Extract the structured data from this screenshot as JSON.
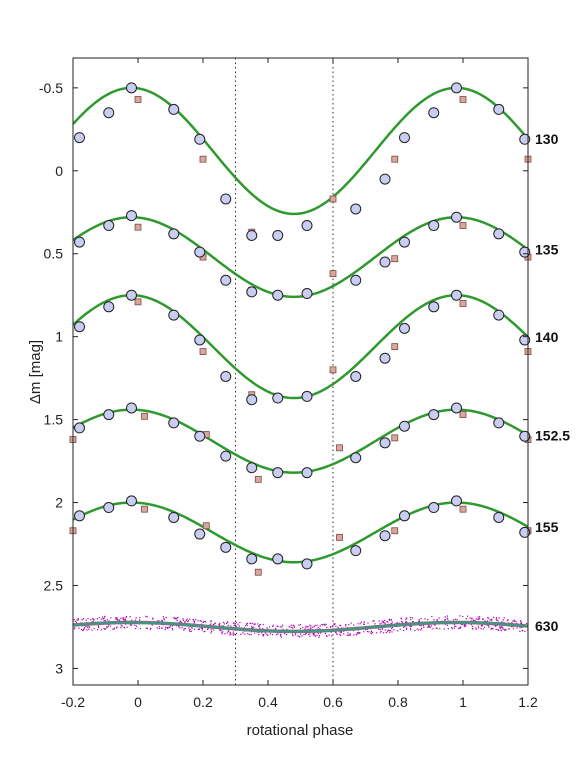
{
  "chart_data": {
    "type": "line",
    "xlabel": "rotational phase",
    "ylabel": "Δm  [mag]",
    "xlim": [
      -0.2,
      1.2
    ],
    "ylim": [
      3.1,
      -0.68
    ],
    "y_inverted": true,
    "grid": false,
    "xticks": [
      -0.2,
      0,
      0.2,
      0.4,
      0.6,
      0.8,
      1,
      1.2
    ],
    "xtick_labels": [
      "-0.2",
      "0",
      "0.2",
      "0.4",
      "0.6",
      "0.8",
      "1",
      "1.2"
    ],
    "yticks": [
      -0.5,
      0,
      0.5,
      1,
      1.5,
      2,
      2.5,
      3
    ],
    "ytick_labels": [
      "-0.5",
      "0",
      "0.5",
      "1",
      "1.5",
      "2",
      "2.5",
      "3"
    ],
    "vlines": [
      0.3,
      0.6
    ],
    "colors": {
      "fit_line": "#2e9a2e",
      "circle_fill": "#c9cdf2",
      "circle_stroke": "#222222",
      "square_fill": "#d8a8a0",
      "square_stroke": "#7a4a44",
      "band": "#b100b1",
      "band_line": "#3a9a8a"
    },
    "series": [
      {
        "name": "130",
        "fit": {
          "mean": -0.12,
          "amp": 0.38,
          "phi0": -0.02
        },
        "circles": [
          [
            -0.18,
            -0.2
          ],
          [
            -0.09,
            -0.35
          ],
          [
            -0.02,
            -0.5
          ],
          [
            0.11,
            -0.37
          ],
          [
            0.19,
            -0.19
          ],
          [
            0.27,
            0.17
          ],
          [
            0.35,
            0.39
          ],
          [
            0.43,
            0.39
          ],
          [
            0.52,
            0.33
          ],
          [
            0.67,
            0.23
          ],
          [
            0.76,
            0.05
          ],
          [
            0.82,
            -0.2
          ],
          [
            0.91,
            -0.35
          ],
          [
            0.98,
            -0.5
          ],
          [
            1.11,
            -0.37
          ],
          [
            1.19,
            -0.19
          ]
        ],
        "squares": [
          [
            0,
            -0.43
          ],
          [
            0.2,
            -0.07
          ],
          [
            0.35,
            0.37
          ],
          [
            0.6,
            0.17
          ],
          [
            0.79,
            -0.07
          ],
          [
            1,
            -0.43
          ],
          [
            1.2,
            -0.07
          ]
        ]
      },
      {
        "name": "135",
        "fit": {
          "mean": 0.52,
          "amp": 0.24,
          "phi0": -0.02
        },
        "circles": [
          [
            -0.18,
            0.43
          ],
          [
            -0.09,
            0.33
          ],
          [
            -0.02,
            0.27
          ],
          [
            0.11,
            0.38
          ],
          [
            0.19,
            0.49
          ],
          [
            0.27,
            0.66
          ],
          [
            0.35,
            0.73
          ],
          [
            0.43,
            0.75
          ],
          [
            0.52,
            0.74
          ],
          [
            0.67,
            0.66
          ],
          [
            0.76,
            0.55
          ],
          [
            0.82,
            0.43
          ],
          [
            0.91,
            0.33
          ],
          [
            0.98,
            0.28
          ],
          [
            1.11,
            0.38
          ],
          [
            1.19,
            0.49
          ]
        ],
        "squares": [
          [
            0,
            0.34
          ],
          [
            0.2,
            0.52
          ],
          [
            0.35,
            0.72
          ],
          [
            0.6,
            0.62
          ],
          [
            0.79,
            0.53
          ],
          [
            1,
            0.33
          ],
          [
            1.2,
            0.52
          ]
        ]
      },
      {
        "name": "140",
        "fit": {
          "mean": 1.06,
          "amp": 0.31,
          "phi0": -0.02
        },
        "circles": [
          [
            -0.18,
            0.94
          ],
          [
            -0.09,
            0.82
          ],
          [
            -0.02,
            0.75
          ],
          [
            0.11,
            0.87
          ],
          [
            0.19,
            1.02
          ],
          [
            0.27,
            1.24
          ],
          [
            0.35,
            1.38
          ],
          [
            0.43,
            1.37
          ],
          [
            0.52,
            1.36
          ],
          [
            0.67,
            1.24
          ],
          [
            0.76,
            1.13
          ],
          [
            0.82,
            0.95
          ],
          [
            0.91,
            0.82
          ],
          [
            0.98,
            0.75
          ],
          [
            1.11,
            0.87
          ],
          [
            1.19,
            1.02
          ]
        ],
        "squares": [
          [
            0,
            0.79
          ],
          [
            0.2,
            1.09
          ],
          [
            0.35,
            1.35
          ],
          [
            0.6,
            1.2
          ],
          [
            0.79,
            1.06
          ],
          [
            1,
            0.8
          ],
          [
            1.2,
            1.09
          ]
        ]
      },
      {
        "name": "152.5",
        "fit": {
          "mean": 1.63,
          "amp": 0.19,
          "phi0": -0.02
        },
        "circles": [
          [
            -0.18,
            1.55
          ],
          [
            -0.09,
            1.47
          ],
          [
            -0.02,
            1.43
          ],
          [
            0.11,
            1.52
          ],
          [
            0.19,
            1.6
          ],
          [
            0.27,
            1.72
          ],
          [
            0.35,
            1.79
          ],
          [
            0.43,
            1.82
          ],
          [
            0.52,
            1.82
          ],
          [
            0.67,
            1.73
          ],
          [
            0.76,
            1.64
          ],
          [
            0.82,
            1.54
          ],
          [
            0.91,
            1.47
          ],
          [
            0.98,
            1.43
          ],
          [
            1.11,
            1.52
          ],
          [
            1.19,
            1.6
          ]
        ],
        "squares": [
          [
            -0.2,
            1.62
          ],
          [
            0.02,
            1.48
          ],
          [
            0.21,
            1.59
          ],
          [
            0.37,
            1.86
          ],
          [
            0.62,
            1.67
          ],
          [
            0.79,
            1.61
          ],
          [
            1,
            1.47
          ],
          [
            1.2,
            1.62
          ]
        ]
      },
      {
        "name": "155",
        "fit": {
          "mean": 2.18,
          "amp": 0.18,
          "phi0": -0.02
        },
        "circles": [
          [
            -0.18,
            2.08
          ],
          [
            -0.09,
            2.03
          ],
          [
            -0.02,
            1.99
          ],
          [
            0.11,
            2.09
          ],
          [
            0.19,
            2.19
          ],
          [
            0.27,
            2.27
          ],
          [
            0.35,
            2.34
          ],
          [
            0.43,
            2.34
          ],
          [
            0.52,
            2.37
          ],
          [
            0.67,
            2.29
          ],
          [
            0.76,
            2.2
          ],
          [
            0.82,
            2.08
          ],
          [
            0.91,
            2.03
          ],
          [
            0.98,
            1.99
          ],
          [
            1.11,
            2.09
          ],
          [
            1.19,
            2.18
          ]
        ],
        "squares": [
          [
            -0.2,
            2.17
          ],
          [
            0.02,
            2.04
          ],
          [
            0.21,
            2.14
          ],
          [
            0.37,
            2.42
          ],
          [
            0.62,
            2.21
          ],
          [
            0.79,
            2.17
          ],
          [
            1,
            2.04
          ],
          [
            1.2,
            2.17
          ]
        ]
      },
      {
        "name": "630",
        "fit": {
          "mean": 2.75,
          "amp": 0.027,
          "phi0": 0.98
        },
        "band_halfwidth": 0.04
      }
    ]
  }
}
